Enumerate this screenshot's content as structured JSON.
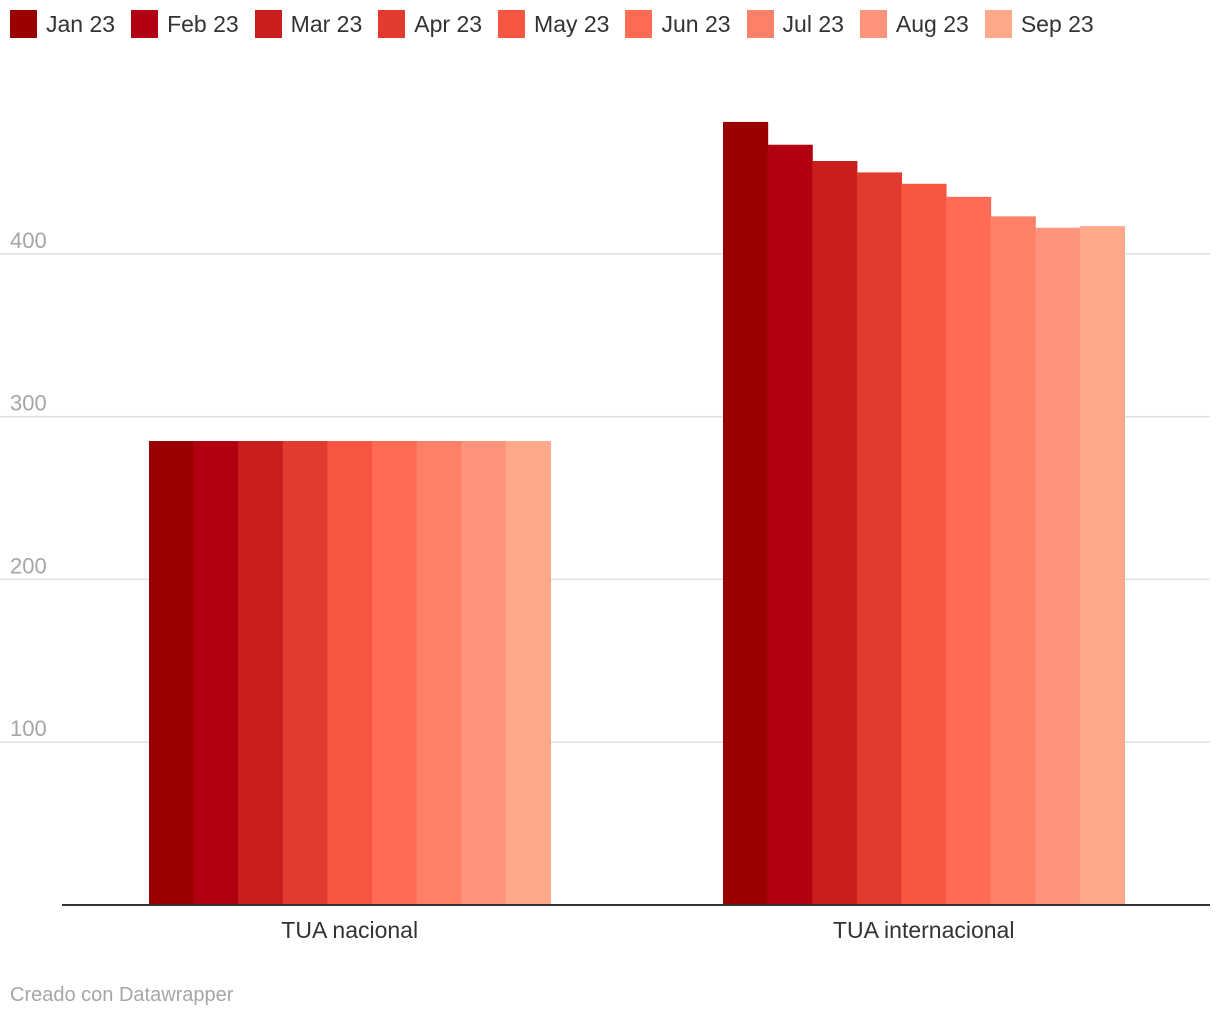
{
  "chart_data": {
    "type": "bar",
    "categories": [
      "TUA nacional",
      "TUA internacional"
    ],
    "series": [
      {
        "name": "Jan 23",
        "color": "#9b0000",
        "values": [
          285,
          481
        ]
      },
      {
        "name": "Feb 23",
        "color": "#b10010",
        "values": [
          285,
          467
        ]
      },
      {
        "name": "Mar 23",
        "color": "#c91e1e",
        "values": [
          285,
          457
        ]
      },
      {
        "name": "Apr 23",
        "color": "#e13b2f",
        "values": [
          285,
          450
        ]
      },
      {
        "name": "May 23",
        "color": "#f65541",
        "values": [
          285,
          443
        ]
      },
      {
        "name": "Jun 23",
        "color": "#ff6b55",
        "values": [
          285,
          435
        ]
      },
      {
        "name": "Jul 23",
        "color": "#ff8068",
        "values": [
          285,
          423
        ]
      },
      {
        "name": "Aug 23",
        "color": "#ff947c",
        "values": [
          285,
          416
        ]
      },
      {
        "name": "Sep 23",
        "color": "#ffa88a",
        "values": [
          285,
          417
        ]
      }
    ],
    "yticks": [
      100,
      200,
      300,
      400
    ],
    "ylim": [
      0,
      500
    ],
    "grid": true,
    "legend": "top-left"
  },
  "credit": "Creado con Datawrapper"
}
